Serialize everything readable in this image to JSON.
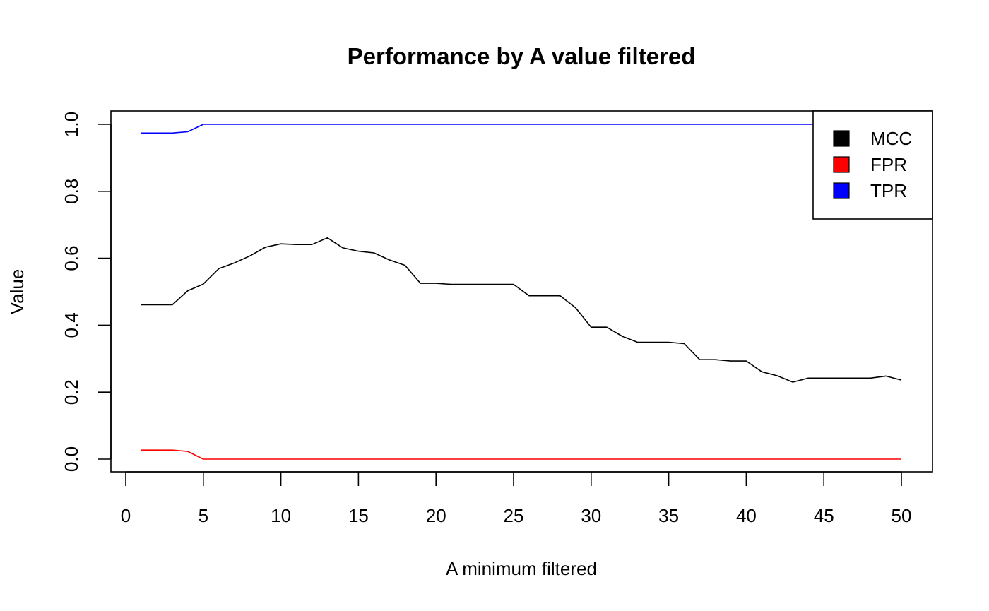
{
  "chart_data": {
    "type": "line",
    "title": "Performance by A value filtered",
    "xlabel": "A minimum filtered",
    "ylabel": "Value",
    "xlim": [
      0,
      50
    ],
    "ylim": [
      0,
      1
    ],
    "x_ticks": [
      "0",
      "5",
      "10",
      "15",
      "20",
      "25",
      "30",
      "35",
      "40",
      "45",
      "50"
    ],
    "y_ticks": [
      "0.0",
      "0.2",
      "0.4",
      "0.6",
      "0.8",
      "1.0"
    ],
    "legend_position": "top-right",
    "grid": false,
    "x": [
      1,
      2,
      3,
      4,
      5,
      6,
      7,
      8,
      9,
      10,
      11,
      12,
      13,
      14,
      15,
      16,
      17,
      18,
      19,
      20,
      21,
      22,
      23,
      24,
      25,
      26,
      27,
      28,
      29,
      30,
      31,
      32,
      33,
      34,
      35,
      36,
      37,
      38,
      39,
      40,
      41,
      42,
      43,
      44,
      45,
      46,
      47,
      48,
      49,
      50
    ],
    "series": [
      {
        "name": "MCC",
        "color": "#000000",
        "values": [
          0.461,
          0.461,
          0.461,
          0.503,
          0.523,
          0.569,
          0.586,
          0.607,
          0.633,
          0.643,
          0.641,
          0.641,
          0.661,
          0.631,
          0.621,
          0.616,
          0.595,
          0.579,
          0.525,
          0.525,
          0.522,
          0.522,
          0.522,
          0.522,
          0.522,
          0.488,
          0.488,
          0.488,
          0.452,
          0.394,
          0.394,
          0.367,
          0.349,
          0.349,
          0.349,
          0.345,
          0.297,
          0.297,
          0.293,
          0.293,
          0.261,
          0.249,
          0.23,
          0.242,
          0.242,
          0.242,
          0.242,
          0.242,
          0.248,
          0.236
        ]
      },
      {
        "name": "FPR",
        "color": "#ff0000",
        "values": [
          0.027,
          0.027,
          0.027,
          0.023,
          0.0,
          0.0,
          0.0,
          0.0,
          0.0,
          0.0,
          0.0,
          0.0,
          0.0,
          0.0,
          0.0,
          0.0,
          0.0,
          0.0,
          0.0,
          0.0,
          0.0,
          0.0,
          0.0,
          0.0,
          0.0,
          0.0,
          0.0,
          0.0,
          0.0,
          0.0,
          0.0,
          0.0,
          0.0,
          0.0,
          0.0,
          0.0,
          0.0,
          0.0,
          0.0,
          0.0,
          0.0,
          0.0,
          0.0,
          0.0,
          0.0,
          0.0,
          0.0,
          0.0,
          0.0,
          0.0
        ]
      },
      {
        "name": "TPR",
        "color": "#0000ff",
        "values": [
          0.974,
          0.974,
          0.974,
          0.978,
          1.0,
          1.0,
          1.0,
          1.0,
          1.0,
          1.0,
          1.0,
          1.0,
          1.0,
          1.0,
          1.0,
          1.0,
          1.0,
          1.0,
          1.0,
          1.0,
          1.0,
          1.0,
          1.0,
          1.0,
          1.0,
          1.0,
          1.0,
          1.0,
          1.0,
          1.0,
          1.0,
          1.0,
          1.0,
          1.0,
          1.0,
          1.0,
          1.0,
          1.0,
          1.0,
          1.0,
          1.0,
          1.0,
          1.0,
          1.0,
          1.0,
          1.0,
          1.0,
          1.0,
          1.0,
          1.0
        ]
      }
    ]
  }
}
